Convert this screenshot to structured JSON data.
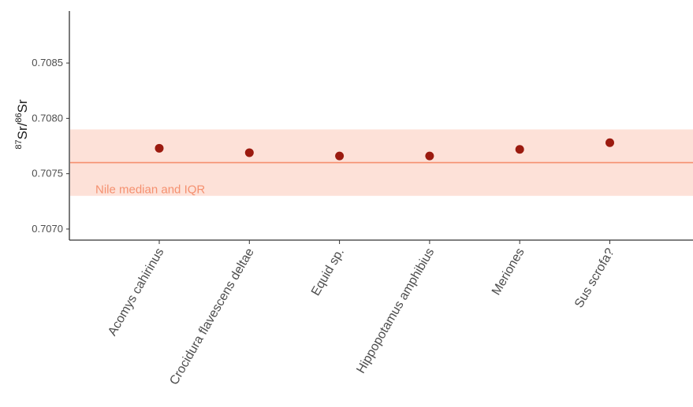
{
  "chart_data": {
    "type": "scatter",
    "categories": [
      "Acomys cahirinus",
      "Crocidura flavescens deltae",
      "Equid sp.",
      "Hippopotamus amphibius",
      "Meriones",
      "Sus scrofa?"
    ],
    "values": [
      0.70773,
      0.70769,
      0.70766,
      0.70766,
      0.70772,
      0.70778
    ],
    "ylim": [
      0.7069,
      0.70897
    ],
    "yticks": [
      "0.7070",
      "0.7075",
      "0.7080",
      "0.7085"
    ],
    "ytick_values": [
      0.707,
      0.7075,
      0.708,
      0.7085
    ],
    "ylabel": {
      "sup1": "87",
      "base1": "Sr/",
      "sup2": "86",
      "base2": "Sr"
    },
    "band": {
      "low": 0.7073,
      "high": 0.7079,
      "median": 0.7076,
      "label": "Nile median and IQR"
    },
    "grid": false,
    "colors": {
      "point": "#9b1a0f",
      "band_fill": "#fde1d8",
      "band_line": "#f5906f",
      "annotation": "#f5906f",
      "axis": "#333333"
    }
  }
}
